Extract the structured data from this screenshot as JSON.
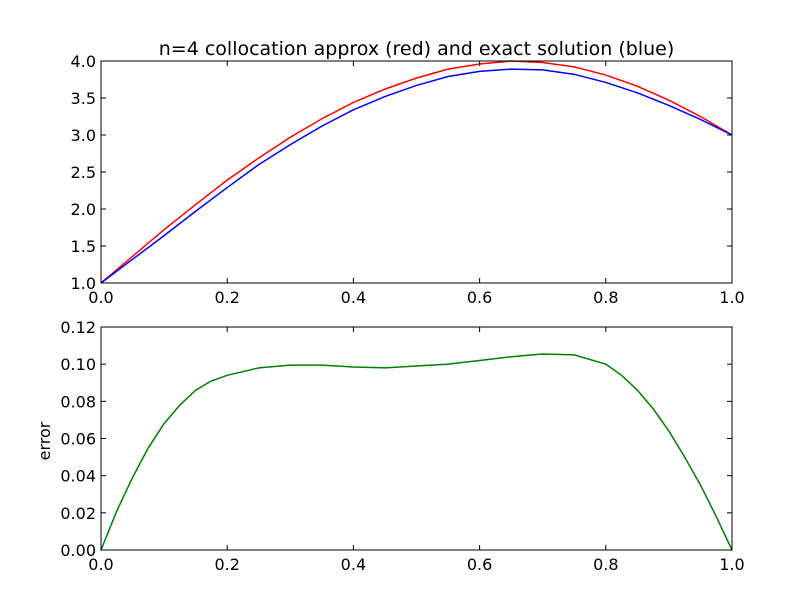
{
  "chart_data": [
    {
      "type": "line",
      "title": "n=4 collocation approx (red) and exact solution (blue)",
      "xlabel": "",
      "ylabel": "",
      "xlim": [
        0.0,
        1.0
      ],
      "ylim": [
        1.0,
        4.0
      ],
      "x_ticks": [
        "0.0",
        "0.2",
        "0.4",
        "0.6",
        "0.8",
        "1.0"
      ],
      "y_ticks": [
        "1.0",
        "1.5",
        "2.0",
        "2.5",
        "3.0",
        "3.5",
        "4.0"
      ],
      "grid": false,
      "series": [
        {
          "color": "#ff0000",
          "x": [
            0.0,
            0.05,
            0.1,
            0.15,
            0.2,
            0.25,
            0.3,
            0.35,
            0.4,
            0.45,
            0.5,
            0.55,
            0.6,
            0.65,
            0.7,
            0.75,
            0.8,
            0.85,
            0.9,
            0.95,
            1.0
          ],
          "y": [
            1.0,
            1.36,
            1.72,
            2.06,
            2.39,
            2.69,
            2.97,
            3.22,
            3.44,
            3.62,
            3.77,
            3.89,
            3.96,
            4.0,
            3.98,
            3.92,
            3.81,
            3.66,
            3.47,
            3.25,
            3.0
          ]
        },
        {
          "color": "#0000ff",
          "x": [
            0.0,
            0.05,
            0.1,
            0.15,
            0.2,
            0.25,
            0.3,
            0.35,
            0.4,
            0.45,
            0.5,
            0.55,
            0.6,
            0.65,
            0.7,
            0.75,
            0.8,
            0.85,
            0.9,
            0.95,
            1.0
          ],
          "y": [
            1.0,
            1.32,
            1.64,
            1.97,
            2.29,
            2.6,
            2.87,
            3.12,
            3.34,
            3.52,
            3.67,
            3.79,
            3.86,
            3.89,
            3.88,
            3.82,
            3.71,
            3.57,
            3.4,
            3.21,
            3.0
          ]
        }
      ]
    },
    {
      "type": "line",
      "title": "",
      "xlabel": "",
      "ylabel": "error",
      "xlim": [
        0.0,
        1.0
      ],
      "ylim": [
        0.0,
        0.12
      ],
      "x_ticks": [
        "0.0",
        "0.2",
        "0.4",
        "0.6",
        "0.8",
        "1.0"
      ],
      "y_ticks": [
        "0.00",
        "0.02",
        "0.04",
        "0.06",
        "0.08",
        "0.10",
        "0.12"
      ],
      "grid": false,
      "series": [
        {
          "color": "#008000",
          "x": [
            0.0,
            0.025,
            0.05,
            0.075,
            0.1,
            0.125,
            0.15,
            0.175,
            0.2,
            0.25,
            0.3,
            0.35,
            0.4,
            0.45,
            0.5,
            0.55,
            0.6,
            0.65,
            0.7,
            0.75,
            0.8,
            0.825,
            0.85,
            0.875,
            0.9,
            0.925,
            0.95,
            0.975,
            1.0
          ],
          "y": [
            0.0,
            0.021,
            0.039,
            0.055,
            0.068,
            0.078,
            0.086,
            0.091,
            0.094,
            0.098,
            0.0995,
            0.0995,
            0.0985,
            0.098,
            0.099,
            0.1,
            0.102,
            0.104,
            0.1055,
            0.105,
            0.1,
            0.094,
            0.086,
            0.076,
            0.064,
            0.05,
            0.035,
            0.018,
            0.0
          ]
        }
      ]
    }
  ]
}
